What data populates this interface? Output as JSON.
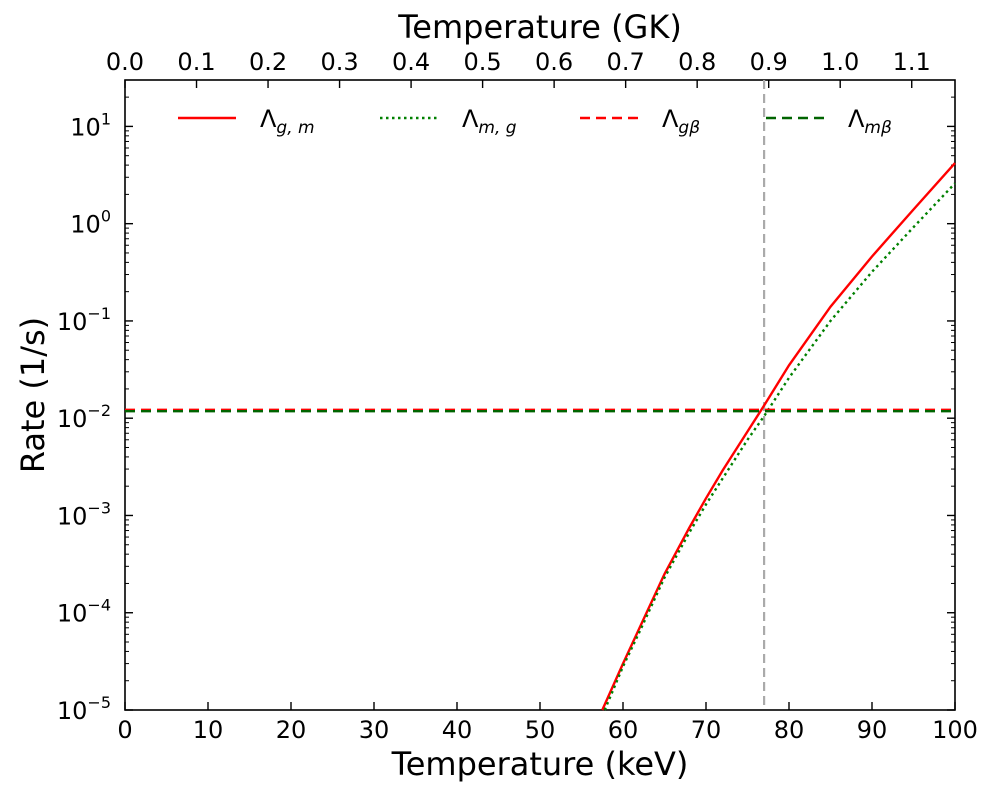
{
  "chart_data": {
    "type": "line",
    "xlabel": "Temperature (keV)",
    "top_xlabel": "Temperature (GK)",
    "ylabel": "Rate (1/s)",
    "xlim": [
      0,
      100
    ],
    "ylim": [
      1e-05,
      30
    ],
    "yscale": "log",
    "grid": false,
    "legend_position": "top",
    "x_ticks": [
      0,
      10,
      20,
      30,
      40,
      50,
      60,
      70,
      80,
      90,
      100
    ],
    "x_tick_labels": [
      "0",
      "10",
      "20",
      "30",
      "40",
      "50",
      "60",
      "70",
      "80",
      "90",
      "100"
    ],
    "top_ticks_GK": [
      0.0,
      0.1,
      0.2,
      0.3,
      0.4,
      0.5,
      0.6,
      0.7,
      0.8,
      0.9,
      1.0,
      1.1
    ],
    "top_tick_labels": [
      "0.0",
      "0.1",
      "0.2",
      "0.3",
      "0.4",
      "0.5",
      "0.6",
      "0.7",
      "0.8",
      "0.9",
      "1.0",
      "1.1"
    ],
    "keV_per_GK": 86.17,
    "y_ticks": [
      {
        "value": 10,
        "base": "10",
        "exp": "1"
      },
      {
        "value": 1,
        "base": "10",
        "exp": "0"
      },
      {
        "value": 0.1,
        "base": "10",
        "exp": "−1"
      },
      {
        "value": 0.01,
        "base": "10",
        "exp": "−2"
      },
      {
        "value": 0.001,
        "base": "10",
        "exp": "−3"
      },
      {
        "value": 0.0001,
        "base": "10",
        "exp": "−4"
      },
      {
        "value": 1e-05,
        "base": "10",
        "exp": "−5"
      }
    ],
    "vline": {
      "x": 77,
      "color": "#aaaaaa",
      "style": "dashed"
    },
    "series": [
      {
        "name": "Λ",
        "subscript": "g, m",
        "color": "#ff0000",
        "style": "solid",
        "x": [
          57.5,
          60,
          62,
          65,
          68,
          70,
          72,
          75,
          77,
          80,
          85,
          90,
          95,
          100
        ],
        "y": [
          1e-05,
          3e-05,
          7e-05,
          0.00025,
          0.00075,
          0.0015,
          0.0029,
          0.0073,
          0.0135,
          0.035,
          0.14,
          0.46,
          1.4,
          4.2
        ]
      },
      {
        "name": "Λ",
        "subscript": "m, g",
        "color": "#008000",
        "style": "dotted",
        "x": [
          57.8,
          60,
          62,
          65,
          68,
          70,
          72,
          75,
          77,
          80,
          85,
          90,
          95,
          100
        ],
        "y": [
          1e-05,
          2.8e-05,
          6.4e-05,
          0.00023,
          0.00067,
          0.0013,
          0.0024,
          0.006,
          0.0105,
          0.026,
          0.1,
          0.32,
          0.92,
          2.6
        ]
      },
      {
        "name": "Λ",
        "subscript": "gβ",
        "color": "#ff0000",
        "style": "dashed",
        "x": [
          0,
          100
        ],
        "y": [
          0.0122,
          0.0122
        ]
      },
      {
        "name": "Λ",
        "subscript": "mβ",
        "color": "#006400",
        "style": "dashed",
        "x": [
          0,
          100
        ],
        "y": [
          0.0118,
          0.0118
        ]
      }
    ]
  }
}
